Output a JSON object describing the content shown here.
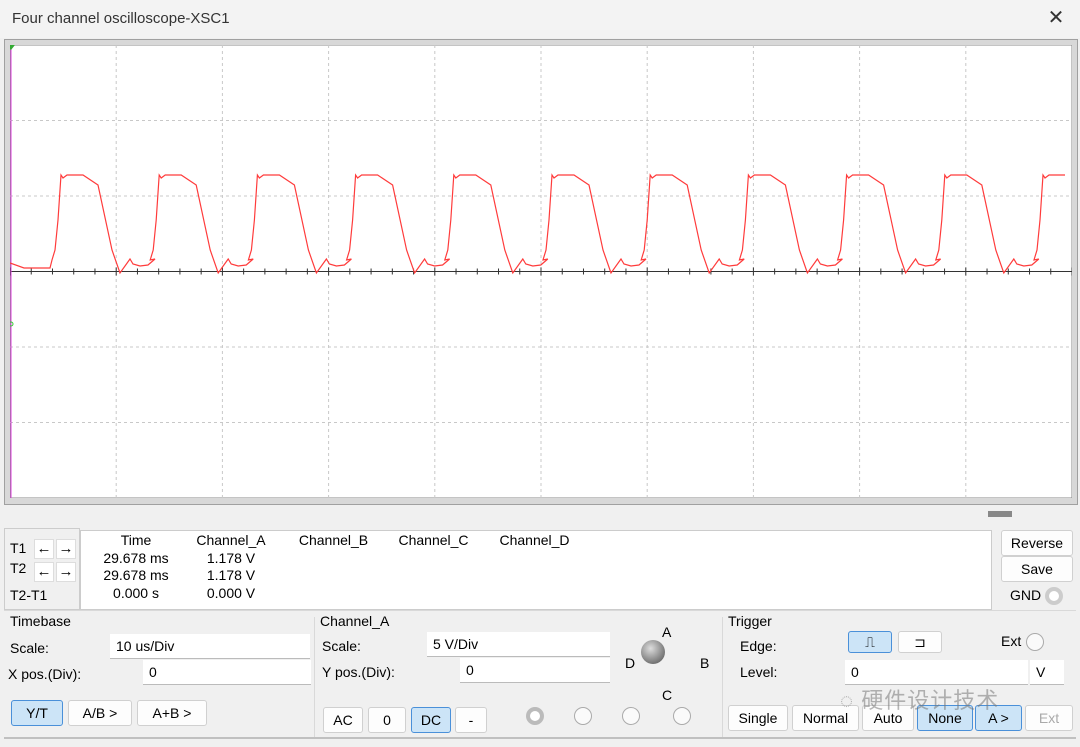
{
  "window": {
    "title": "Four channel oscilloscope-XSC1",
    "close_icon": "close-icon"
  },
  "colors": {
    "trace_a": "#ff3b3b",
    "grid": "#c8c8c8",
    "cursor": "#e040e0",
    "selected": "#cce4f7"
  },
  "cursors": {
    "t1_label": "T1",
    "t2_label": "T2",
    "diff_label": "T2-T1"
  },
  "readout": {
    "headers": [
      "Time",
      "Channel_A",
      "Channel_B",
      "Channel_C",
      "Channel_D"
    ],
    "t1": {
      "time": "29.678 ms",
      "channel_a": "1.178 V"
    },
    "t2": {
      "time": "29.678 ms",
      "channel_a": "1.178 V"
    },
    "diff": {
      "time": "0.000 s",
      "channel_a": "0.000 V"
    }
  },
  "side_buttons": {
    "reverse": "Reverse",
    "save": "Save",
    "gnd": "GND"
  },
  "timebase": {
    "title": "Timebase",
    "scale_label": "Scale:",
    "scale_value": "10 us/Div",
    "xpos_label": "X pos.(Div):",
    "xpos_value": "0",
    "modes": [
      "Y/T",
      "A/B >",
      "A+B >"
    ],
    "selected_mode": "Y/T"
  },
  "channel": {
    "title": "Channel_A",
    "scale_label": "Scale:",
    "scale_value": "5  V/Div",
    "ypos_label": "Y pos.(Div):",
    "ypos_value": "0",
    "coupling": [
      "AC",
      "0",
      "DC",
      "-"
    ],
    "selected_coupling": "DC",
    "knob_labels": {
      "a": "A",
      "b": "B",
      "c": "C",
      "d": "D"
    }
  },
  "trigger": {
    "title": "Trigger",
    "edge_label": "Edge:",
    "level_label": "Level:",
    "level_value": "0",
    "level_unit": "V",
    "ext_label": "Ext",
    "rising_edge": "rising-edge-icon",
    "falling_edge": "falling-edge-icon",
    "modes": [
      "Single",
      "Normal",
      "Auto",
      "None",
      "A >",
      "Ext"
    ],
    "selected": [
      "None",
      "A >"
    ]
  },
  "watermark": "硬件设计技术"
}
